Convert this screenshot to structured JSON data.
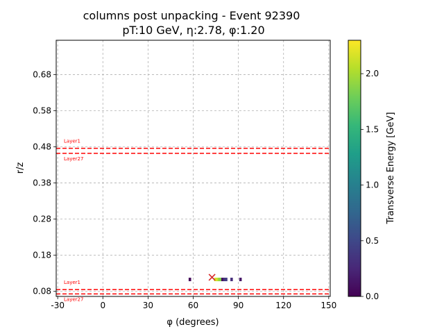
{
  "chart_data": {
    "type": "heatmap",
    "title": "columns post unpacking - Event 92390",
    "subtitle": "pT:10 GeV, η:2.78, φ:1.20",
    "xlabel": "φ (degrees)",
    "ylabel": "r/z",
    "xlim": [
      -31,
      151
    ],
    "ylim": [
      0.066,
      0.775
    ],
    "x_ticks": [
      -30,
      0,
      30,
      60,
      90,
      120,
      150
    ],
    "x_tick_labels": [
      "-30",
      "0",
      "30",
      "60",
      "90",
      "120",
      "150"
    ],
    "y_ticks": [
      0.08,
      0.18,
      0.28,
      0.38,
      0.48,
      0.58,
      0.68
    ],
    "y_tick_labels": [
      "0.08",
      "0.18",
      "0.28",
      "0.38",
      "0.48",
      "0.58",
      "0.68"
    ],
    "grid": true,
    "layer_lines": [
      {
        "y": 0.476,
        "label": "Layer1",
        "color": "#ff0000"
      },
      {
        "y": 0.462,
        "label": "Layer27",
        "color": "#ff0000"
      },
      {
        "y": 0.085,
        "label": "Layer1",
        "color": "#ff0000"
      },
      {
        "y": 0.073,
        "label": "Layer27",
        "color": "#ff0000"
      }
    ],
    "cells": [
      {
        "phi": 57.8,
        "rz": 0.113,
        "energy": 0.05
      },
      {
        "phi": 74.7,
        "rz": 0.113,
        "energy": 2.15
      },
      {
        "phi": 75.9,
        "rz": 0.113,
        "energy": 2.15
      },
      {
        "phi": 77.1,
        "rz": 0.113,
        "energy": 1.95
      },
      {
        "phi": 78.3,
        "rz": 0.113,
        "energy": 1.85
      },
      {
        "phi": 79.5,
        "rz": 0.113,
        "energy": 0.05
      },
      {
        "phi": 80.7,
        "rz": 0.113,
        "energy": 0.35
      },
      {
        "phi": 81.9,
        "rz": 0.113,
        "energy": 0.4
      },
      {
        "phi": 85.5,
        "rz": 0.113,
        "energy": 0.3
      },
      {
        "phi": 91.4,
        "rz": 0.113,
        "energy": 0.15
      }
    ],
    "marker": {
      "phi": 72.5,
      "rz": 0.119,
      "symbol": "x",
      "color": "#d62728"
    },
    "colorbar": {
      "label": "Transverse Energy [GeV]",
      "min": 0.0,
      "max": 2.3,
      "ticks": [
        0.0,
        0.5,
        1.0,
        1.5,
        2.0
      ],
      "tick_labels": [
        "0.0",
        "0.5",
        "1.0",
        "1.5",
        "2.0"
      ],
      "colormap": "viridis",
      "colormap_stops": [
        "#440154",
        "#482878",
        "#3e4989",
        "#31688e",
        "#26828e",
        "#1f9e89",
        "#35b779",
        "#6ece58",
        "#b5de2b",
        "#fde725"
      ]
    }
  }
}
